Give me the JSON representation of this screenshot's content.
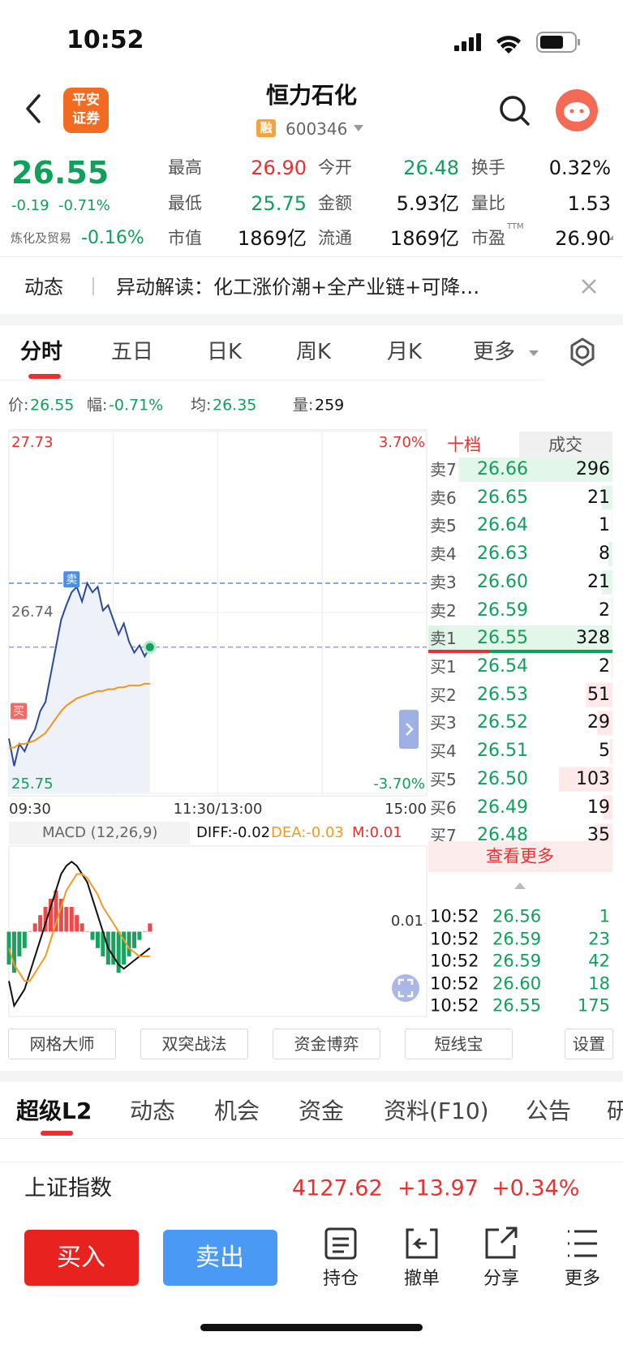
{
  "status_bar": {
    "time": "10:52"
  },
  "header": {
    "logo_top": "平安",
    "logo_bottom": "证券",
    "title": "恒力石化",
    "badge": "融",
    "code": "600346"
  },
  "quote": {
    "price": "26.55",
    "change": "-0.19",
    "change_pct": "-0.71%",
    "sector": "炼化及贸易",
    "sector_pct": "-0.16%",
    "stats": [
      [
        {
          "label": "最高",
          "value": "26.90",
          "color": "#e8312f"
        },
        {
          "label": "今开",
          "value": "26.48",
          "color": "#0fa05a"
        },
        {
          "label": "换手",
          "value": "0.32%"
        }
      ],
      [
        {
          "label": "最低",
          "value": "25.75",
          "color": "#0fa05a"
        },
        {
          "label": "金额",
          "value": "5.93亿"
        },
        {
          "label": "量比",
          "value": "1.53"
        }
      ],
      [
        {
          "label": "市值",
          "value": "1869亿"
        },
        {
          "label": "流通",
          "value": "1869亿"
        },
        {
          "label": "市盈",
          "sup": "TTM",
          "value": "26.90"
        }
      ]
    ]
  },
  "news": {
    "tag": "动态",
    "text": "异动解读：化工涨价潮+全产业链+可降…"
  },
  "period_tabs": {
    "items": [
      "分时",
      "五日",
      "日K",
      "周K",
      "月K",
      "更多"
    ],
    "active": 0
  },
  "info": [
    {
      "label": "价:",
      "value": "26.55"
    },
    {
      "label": "幅:",
      "value": "-0.71%"
    },
    {
      "label": "均:",
      "value": "26.35"
    },
    {
      "label": "量:",
      "value": "259"
    }
  ],
  "chart_data": [
    {
      "type": "line",
      "x_labels": [
        "09:30",
        "11:30/13:00",
        "15:00"
      ],
      "ylim": [
        25.75,
        27.73
      ],
      "yticks": [
        27.73,
        26.74,
        25.75
      ],
      "ytick_colors": [
        "#e8312f",
        "#666666",
        "#0fa05a"
      ],
      "y2lim": [
        -3.7,
        3.7
      ],
      "y2ticks": [
        {
          "value": 3.7,
          "label": "3.70%"
        },
        {
          "value": -3.7,
          "label": "-3.70%"
        }
      ],
      "y2tick_colors": [
        "#e8312f",
        "#0fa05a"
      ],
      "grid": true,
      "series": [
        {
          "color": "#2a4a9a",
          "values": [
            26.05,
            25.9,
            26.02,
            25.98,
            26.05,
            26.1,
            26.2,
            26.25,
            26.4,
            26.55,
            26.7,
            26.78,
            26.85,
            26.88,
            26.8,
            26.9,
            26.85,
            26.88,
            26.75,
            26.78,
            26.7,
            26.62,
            26.68,
            26.58,
            26.52,
            26.56,
            26.5,
            26.55
          ]
        },
        {
          "color": "#f0951e",
          "values": [
            26.0,
            26.0,
            26.02,
            26.02,
            26.03,
            26.04,
            26.06,
            26.08,
            26.12,
            26.16,
            26.2,
            26.23,
            26.25,
            26.27,
            26.28,
            26.29,
            26.3,
            26.31,
            26.31,
            26.32,
            26.32,
            26.33,
            26.33,
            26.34,
            26.34,
            26.34,
            26.35,
            26.35
          ]
        }
      ],
      "reference_lines": [
        {
          "value": 26.9,
          "color": "#4a90e2"
        },
        {
          "value": 26.55,
          "color": "#9c9cdc"
        }
      ],
      "markers": [
        {
          "label": "卖",
          "color": "#4a8fe0"
        },
        {
          "label": "买",
          "color": "#f06a6a"
        }
      ]
    },
    {
      "type": "macd",
      "title": "MACD (12,26,9)",
      "legend": [
        {
          "text": "DIFF:-0.02",
          "color": "#111111"
        },
        {
          "text": "DEA:-0.03",
          "color": "#f39a1e"
        },
        {
          "text": "M:0.01",
          "color": "#e8312f"
        }
      ],
      "ylim": [
        -0.1,
        0.1
      ],
      "yticks": [
        0.01
      ],
      "up_color": "#f04848",
      "down_color": "#19a15f",
      "values": [
        -0.04,
        -0.05,
        -0.03,
        -0.02,
        0.0,
        0.01,
        0.02,
        0.03,
        0.04,
        0.05,
        0.04,
        0.03,
        0.03,
        0.02,
        0.01,
        0.0,
        -0.01,
        -0.02,
        -0.03,
        -0.04,
        -0.04,
        -0.05,
        -0.04,
        -0.03,
        -0.02,
        -0.01,
        0.0,
        0.01
      ],
      "series": [
        {
          "color": "#111111",
          "values": [
            -0.06,
            -0.09,
            -0.08,
            -0.07,
            -0.05,
            -0.03,
            -0.01,
            0.01,
            0.03,
            0.05,
            0.07,
            0.08,
            0.085,
            0.08,
            0.07,
            0.06,
            0.04,
            0.02,
            0.0,
            -0.02,
            -0.03,
            -0.04,
            -0.045,
            -0.04,
            -0.035,
            -0.03,
            -0.025,
            -0.02
          ]
        },
        {
          "color": "#f39a1e",
          "values": [
            -0.02,
            -0.04,
            -0.05,
            -0.06,
            -0.06,
            -0.05,
            -0.04,
            -0.03,
            -0.01,
            0.01,
            0.03,
            0.05,
            0.06,
            0.07,
            0.07,
            0.065,
            0.055,
            0.045,
            0.03,
            0.02,
            0.01,
            0.0,
            -0.01,
            -0.02,
            -0.025,
            -0.03,
            -0.03,
            -0.03
          ]
        }
      ]
    }
  ],
  "order_book": {
    "tabs": [
      "十档",
      "成交"
    ],
    "asks": [
      {
        "label": "卖7",
        "price": "26.66",
        "volume": 296
      },
      {
        "label": "卖6",
        "price": "26.65",
        "volume": 21
      },
      {
        "label": "卖5",
        "price": "26.64",
        "volume": 1
      },
      {
        "label": "卖4",
        "price": "26.63",
        "volume": 8
      },
      {
        "label": "卖3",
        "price": "26.60",
        "volume": 21
      },
      {
        "label": "卖2",
        "price": "26.59",
        "volume": 2
      },
      {
        "label": "卖1",
        "price": "26.55",
        "volume": 328
      }
    ],
    "bids": [
      {
        "label": "买1",
        "price": "26.54",
        "volume": 2
      },
      {
        "label": "买2",
        "price": "26.53",
        "volume": 51
      },
      {
        "label": "买3",
        "price": "26.52",
        "volume": 29
      },
      {
        "label": "买4",
        "price": "26.51",
        "volume": 5
      },
      {
        "label": "买5",
        "price": "26.50",
        "volume": 103
      },
      {
        "label": "买6",
        "price": "26.49",
        "volume": 19
      },
      {
        "label": "买7",
        "price": "26.48",
        "volume": 35
      }
    ],
    "more": "查看更多",
    "trades": [
      {
        "time": "10:52",
        "price": "26.56",
        "volume": 1
      },
      {
        "time": "10:52",
        "price": "26.59",
        "volume": 23
      },
      {
        "time": "10:52",
        "price": "26.59",
        "volume": 42
      },
      {
        "time": "10:52",
        "price": "26.60",
        "volume": 18
      },
      {
        "time": "10:52",
        "price": "26.55",
        "volume": 175
      }
    ]
  },
  "tools": [
    "网格大师",
    "双突战法",
    "资金博弈",
    "短线宝",
    "设置"
  ],
  "section_tabs": {
    "items": [
      "超级L2",
      "动态",
      "机会",
      "资金",
      "资料(F10)",
      "公告",
      "研"
    ],
    "active": 0
  },
  "index_bar": {
    "name": "上证指数",
    "value": "4127.62",
    "change": "+13.97",
    "change_pct": "+0.34%"
  },
  "actions": {
    "buy": "买入",
    "sell": "卖出",
    "icons": [
      "持仓",
      "撤单",
      "分享",
      "更多"
    ]
  }
}
